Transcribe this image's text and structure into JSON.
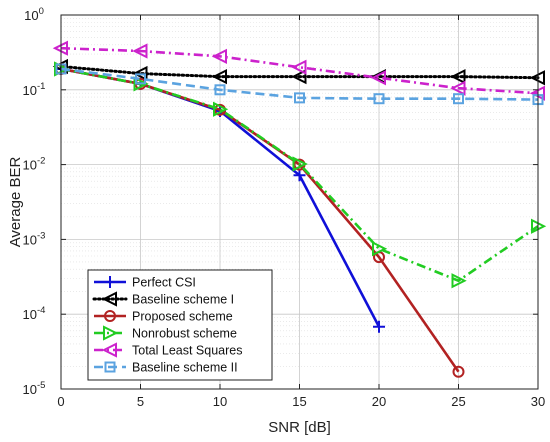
{
  "chart_data": {
    "type": "line",
    "title": "",
    "xlabel": "SNR [dB]",
    "ylabel": "Average BER",
    "xlim": [
      0,
      30
    ],
    "ylim": [
      1e-05,
      1
    ],
    "yscale": "log",
    "grid": true,
    "legend_position": "bottom-left",
    "x_ticks": [
      0,
      5,
      10,
      15,
      20,
      25,
      30
    ],
    "x_tick_labels": [
      "0",
      "5",
      "10",
      "15",
      "20",
      "25",
      "30"
    ],
    "y_ticks": [
      {
        "value": 1e-05,
        "base": "10",
        "exp": "-5"
      },
      {
        "value": 0.0001,
        "base": "10",
        "exp": "-4"
      },
      {
        "value": 0.001,
        "base": "10",
        "exp": "-3"
      },
      {
        "value": 0.01,
        "base": "10",
        "exp": "-2"
      },
      {
        "value": 0.1,
        "base": "10",
        "exp": "-1"
      },
      {
        "value": 1,
        "base": "10",
        "exp": "0"
      }
    ],
    "series": [
      {
        "name": "Perfect CSI",
        "color": "#1010d8",
        "dash": "solid",
        "marker": "plus",
        "x": [
          0,
          5,
          10,
          15,
          20
        ],
        "y": [
          0.19,
          0.12,
          0.052,
          0.0072,
          6.8e-05
        ]
      },
      {
        "name": "Baseline scheme I",
        "color": "#000000",
        "dash": "dotted",
        "marker": "tri-left",
        "x": [
          0,
          5,
          10,
          15,
          20,
          25,
          30
        ],
        "y": [
          0.205,
          0.165,
          0.15,
          0.15,
          0.15,
          0.15,
          0.145
        ]
      },
      {
        "name": "Proposed scheme",
        "color": "#b22222",
        "dash": "solid",
        "marker": "circle",
        "x": [
          0,
          5,
          10,
          15,
          20,
          25
        ],
        "y": [
          0.19,
          0.12,
          0.054,
          0.01,
          0.00058,
          1.7e-05
        ]
      },
      {
        "name": "Nonrobust scheme",
        "color": "#22cc22",
        "dash": "dashdot",
        "marker": "tri-right",
        "x": [
          0,
          5,
          10,
          15,
          20,
          25,
          30
        ],
        "y": [
          0.19,
          0.12,
          0.055,
          0.0102,
          0.00075,
          0.00028,
          0.0015
        ]
      },
      {
        "name": "Total Least Squares",
        "color": "#cc22cc",
        "dash": "dashdot",
        "marker": "tri-left",
        "x": [
          0,
          5,
          10,
          15,
          20,
          25,
          30
        ],
        "y": [
          0.36,
          0.33,
          0.28,
          0.2,
          0.145,
          0.105,
          0.09
        ]
      },
      {
        "name": "Baseline scheme II",
        "color": "#5ba3e0",
        "dash": "dashed",
        "marker": "square",
        "x": [
          0,
          5,
          10,
          15,
          20,
          25,
          30
        ],
        "y": [
          0.19,
          0.14,
          0.1,
          0.078,
          0.076,
          0.076,
          0.074
        ]
      }
    ]
  }
}
